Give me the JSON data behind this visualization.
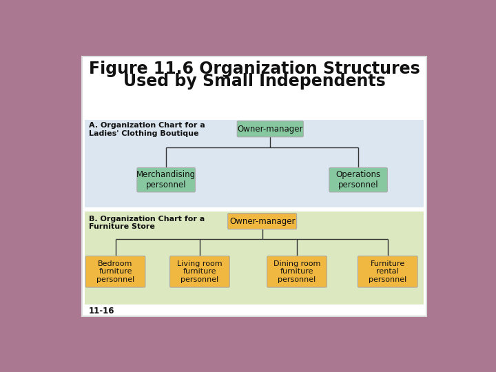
{
  "title_line1": "Figure 11.6 Organization Structures",
  "title_line2": "Used by Small Independents",
  "title_fontsize": 17,
  "title_fontweight": "bold",
  "background_outer": "#aa7890",
  "background_white": "#ffffff",
  "background_A": "#dce6f1",
  "background_B": "#dce8c0",
  "section_A_label": "A. Organization Chart for a\nLadies' Clothing Boutique",
  "section_B_label": "B. Organization Chart for a\nFurniture Store",
  "box_green_top": "#88c8a0",
  "box_green_bottom": "#b8ddb8",
  "box_orange_top": "#f0b840",
  "box_orange_bottom": "#f8d888",
  "line_color": "#333333",
  "text_color_dark": "#111111",
  "footer_text": "11-16",
  "chart_A_root": "Owner-manager",
  "chart_A_children": [
    "Merchandising\npersonnel",
    "Operations\npersonnel"
  ],
  "chart_B_root": "Owner-manager",
  "chart_B_children": [
    "Bedroom\nfurniture\npersonnel",
    "Living room\nfurniture\npersonnel",
    "Dining room\nfurniture\npersonnel",
    "Furniture\nrental\npersonnel"
  ]
}
